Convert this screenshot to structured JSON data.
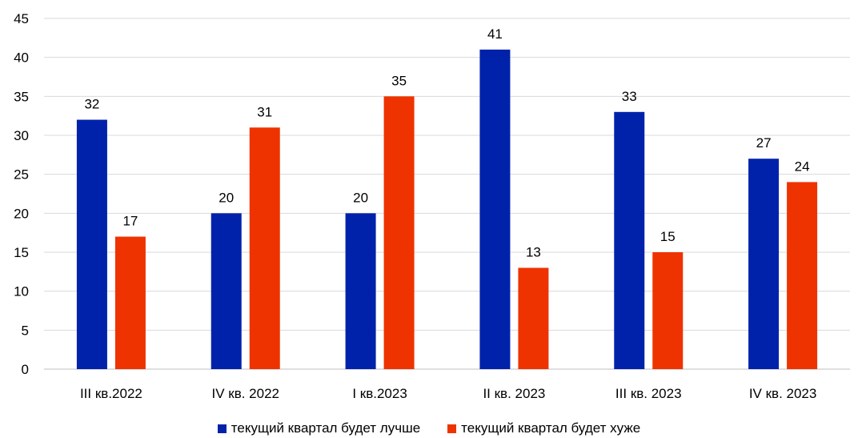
{
  "chart_data": {
    "type": "bar",
    "categories": [
      "III кв.2022",
      "IV кв. 2022",
      "I кв.2023",
      "II кв. 2023",
      "III кв. 2023",
      "IV кв. 2023"
    ],
    "series": [
      {
        "name": "текущий квартал будет лучше",
        "color": "#0022AA",
        "values": [
          32,
          20,
          20,
          41,
          33,
          27
        ]
      },
      {
        "name": "текущий квартал будет хуже",
        "color": "#EE3300",
        "values": [
          17,
          31,
          35,
          13,
          15,
          24
        ]
      }
    ],
    "ylim": [
      0,
      45
    ],
    "yticks": [
      0,
      5,
      10,
      15,
      20,
      25,
      30,
      35,
      40,
      45
    ],
    "grid": true,
    "legend_position": "bottom",
    "data_labels": true
  }
}
